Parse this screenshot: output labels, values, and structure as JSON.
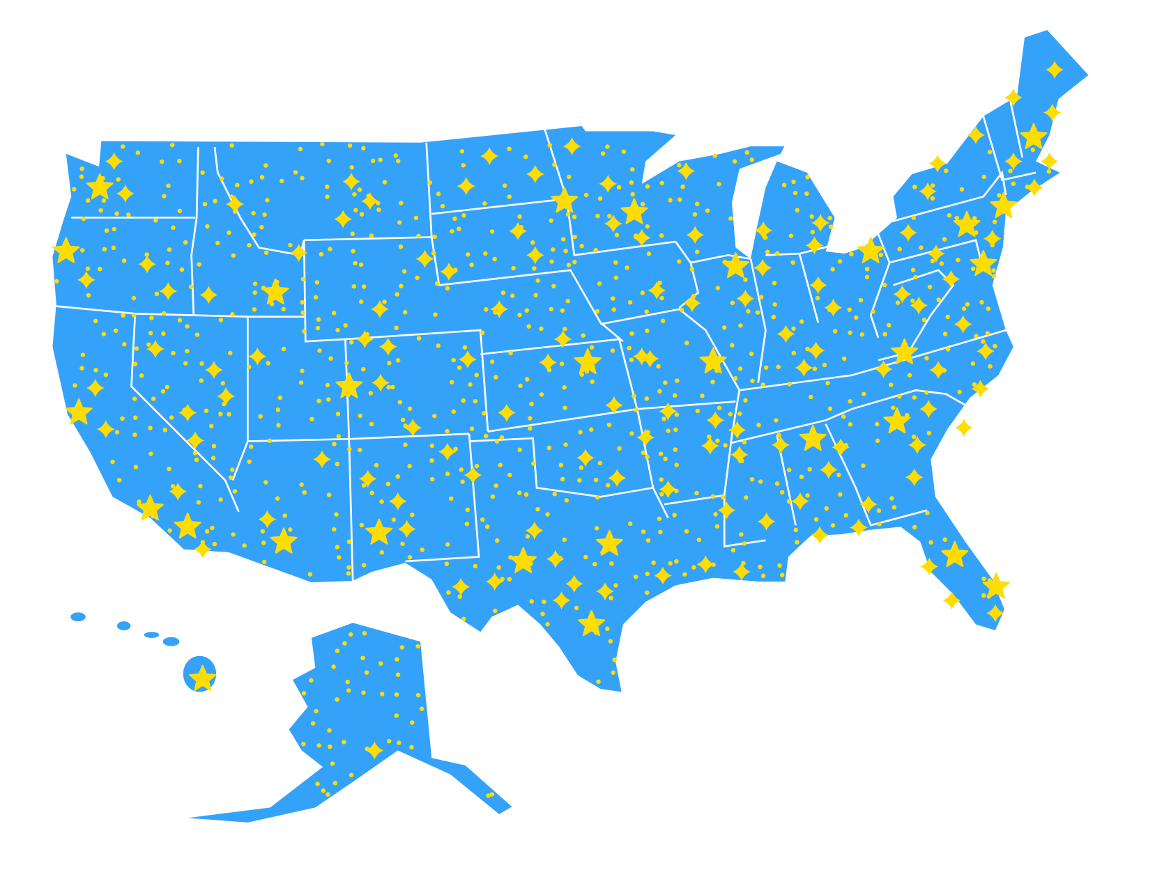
{
  "map": {
    "type": "choropleth-with-markers",
    "region": "United States",
    "colors": {
      "land": "#35a2fa",
      "borders": "#ffffff",
      "markers": "#ffdd00",
      "background": "#ffffff"
    },
    "marker_types": [
      "dot-icon",
      "sparkle-icon",
      "star-icon"
    ]
  }
}
